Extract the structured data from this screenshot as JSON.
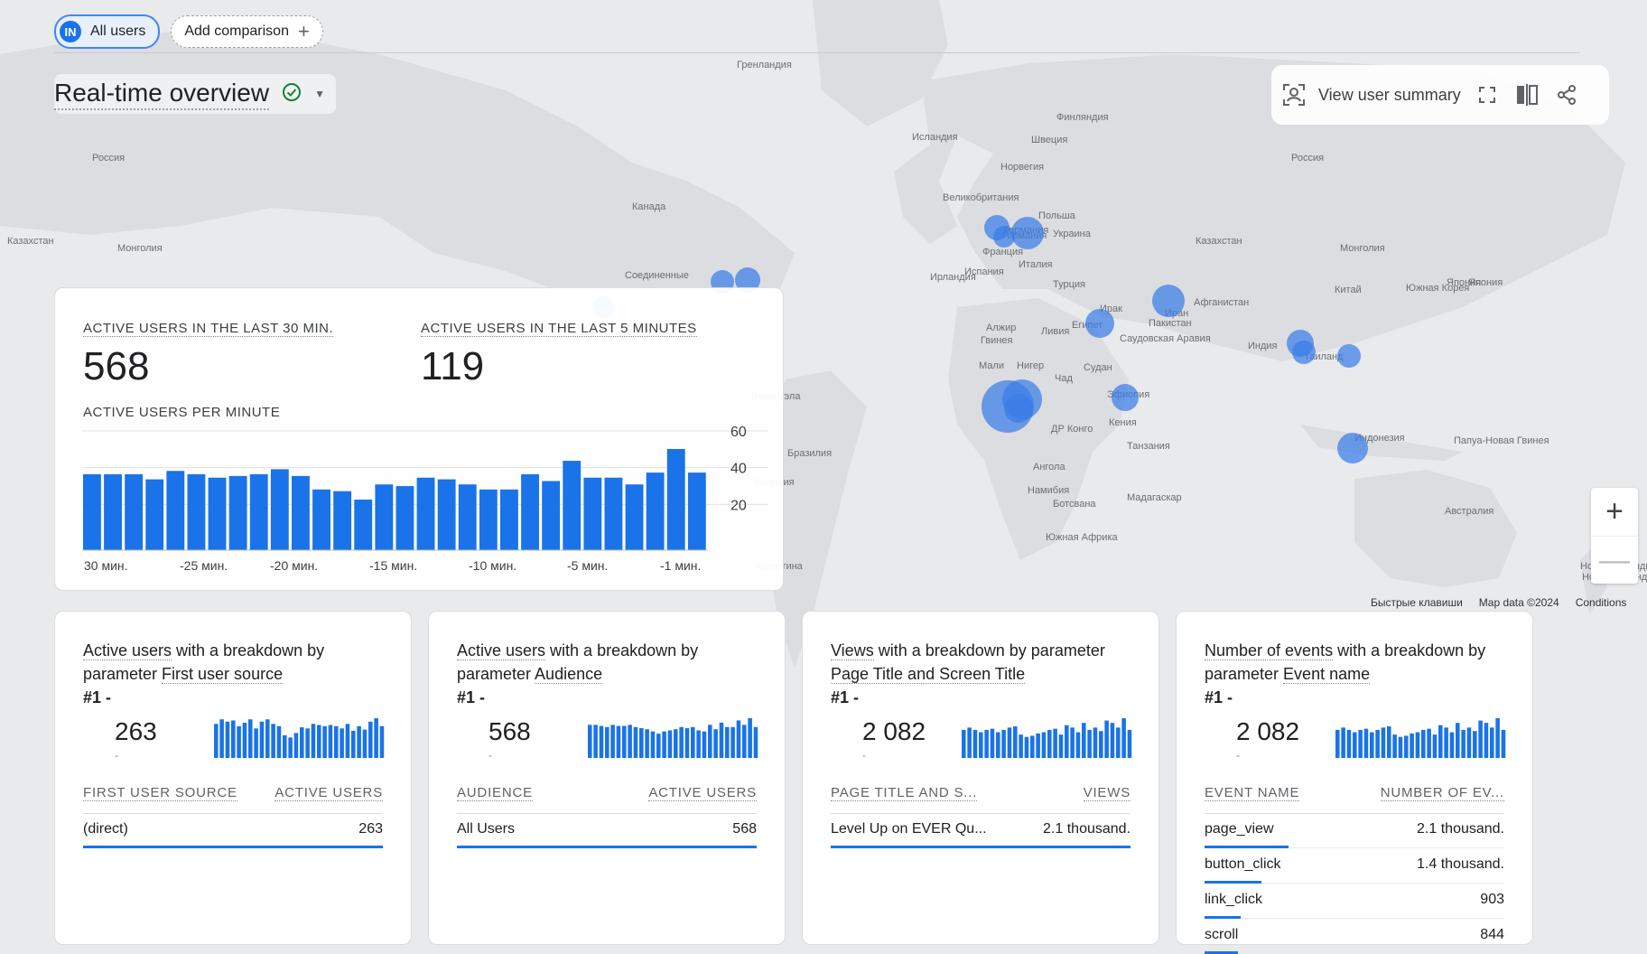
{
  "comparison": {
    "chip_initials": "IN",
    "chip_label": "All users",
    "add_label": "Add comparison"
  },
  "page_title": "Real-time overview",
  "toolbar": {
    "view_user_summary": "View user summary"
  },
  "map": {
    "labels": [
      "Гренландия",
      "Исландия",
      "Финляндия",
      "Швеция",
      "Норвегия",
      "Россия",
      "Россия",
      "Великобритания",
      "Польша",
      "Германия",
      "Франция",
      "Украина",
      "Италия",
      "Испания",
      "Казахстан",
      "Казахстан",
      "Монголия",
      "Монголия",
      "Канада",
      "Соединенные",
      "Япония",
      "Турция",
      "Ирак",
      "Иран",
      "Афганистан",
      "Китай",
      "Южная Корея",
      "Алжир",
      "Ливия",
      "Египет",
      "Саудовская Аравия",
      "Пакистан",
      "Индия",
      "Таиланд",
      "Мали",
      "Нигер",
      "Чад",
      "Судан",
      "Эфиопия",
      "Кения",
      "ДР Конго",
      "Танзания",
      "Бразилия",
      "Ангола",
      "Намибия",
      "Ботсвана",
      "Мадагаскар",
      "Южная Африка",
      "Индонезия",
      "Папуа-Новая Гвинея",
      "Австралия",
      "Новая Зеландия",
      "Ирландия",
      "Германия",
      "Гвинея",
      "Венесуэла",
      "Боливия",
      "Аргентина",
      "Новая Зеландия",
      "Япония"
    ],
    "zoom_in": "+",
    "zoom_out": "—",
    "attribution": {
      "shortcuts": "Быстрые клавиши",
      "map_data": "Map data ©2024",
      "conditions": "Conditions"
    }
  },
  "realtime": {
    "active30_label": "ACTIVE USERS IN THE LAST 30 MIN.",
    "active30_value": "568",
    "active5_label": "ACTIVE USERS IN THE LAST 5 MINUTES",
    "active5_value": "119",
    "per_minute_label": "ACTIVE USERS PER MINUTE"
  },
  "chart_data": {
    "type": "bar",
    "title": "ACTIVE USERS PER MINUTE",
    "categories": [
      "-30",
      "-29",
      "-28",
      "-27",
      "-26",
      "-25",
      "-24",
      "-23",
      "-22",
      "-21",
      "-20",
      "-19",
      "-18",
      "-17",
      "-16",
      "-15",
      "-14",
      "-13",
      "-12",
      "-11",
      "-10",
      "-9",
      "-8",
      "-7",
      "-6",
      "-5",
      "-4",
      "-3",
      "-2",
      "-1"
    ],
    "values": [
      45,
      45,
      45,
      42,
      47,
      45,
      43,
      44,
      45,
      48,
      44,
      36,
      35,
      30,
      39,
      38,
      43,
      42,
      39,
      36,
      36,
      45,
      41,
      53,
      43,
      43,
      39,
      46,
      60,
      46
    ],
    "x_tick_labels": [
      "30 мин.",
      "-25 мин.",
      "-20 мин.",
      "-15 мин.",
      "-10 мин.",
      "-5 мин.",
      "-1 мин."
    ],
    "y_ticks": [
      "20",
      "40",
      "60"
    ],
    "ylim": [
      0,
      60
    ],
    "grid": true,
    "color": "#1a73e8"
  },
  "cards": [
    {
      "title_parts": [
        "Active users",
        " with a breakdown by parameter ",
        "First user source"
      ],
      "rank": "#1  -",
      "value": "263",
      "dash": "-",
      "col1": "FIRST USER SOURCE",
      "col2": "ACTIVE USERS",
      "spark": [
        30,
        34,
        32,
        33,
        28,
        31,
        34,
        26,
        32,
        34,
        30,
        28,
        20,
        18,
        22,
        27,
        26,
        30,
        29,
        28,
        29,
        28,
        26,
        30,
        24,
        28,
        25,
        32,
        35,
        28
      ],
      "rows": [
        {
          "name": "(direct)",
          "value": "263",
          "fill": 1.0
        }
      ]
    },
    {
      "title_parts": [
        "Active users",
        " with a breakdown by parameter ",
        "Audience"
      ],
      "rank": "#1  -",
      "value": "568",
      "dash": "-",
      "col1": "AUDIENCE",
      "col2": "ACTIVE USERS",
      "spark": [
        30,
        30,
        29,
        28,
        30,
        29,
        29,
        30,
        28,
        27,
        26,
        24,
        22,
        24,
        25,
        26,
        28,
        27,
        28,
        25,
        24,
        30,
        26,
        32,
        28,
        28,
        34,
        30,
        36,
        28
      ],
      "rows": [
        {
          "name": "All Users",
          "value": "568",
          "fill": 1.0
        }
      ]
    },
    {
      "title_parts": [
        "Views",
        " with a breakdown by parameter ",
        "Page Title and Screen Title"
      ],
      "rank": "#1  -",
      "value": "2 082",
      "dash": "-",
      "col1": "PAGE TITLE AND S...",
      "col2": "VIEWS",
      "spark": [
        24,
        26,
        24,
        22,
        24,
        25,
        22,
        24,
        26,
        27,
        20,
        18,
        19,
        21,
        22,
        24,
        25,
        20,
        28,
        26,
        22,
        30,
        24,
        26,
        23,
        32,
        30,
        26,
        34,
        24
      ],
      "rows": [
        {
          "name": "Level Up on EVER Qu...",
          "value": "2.1 thousand.",
          "fill": 1.0
        }
      ]
    },
    {
      "title_parts": [
        "Number of events",
        " with a breakdown by parameter ",
        "Event name"
      ],
      "rank": "#1  -",
      "value": "2 082",
      "dash": "-",
      "col1": "EVENT NAME",
      "col2": "NUMBER OF EV...",
      "spark": [
        24,
        26,
        24,
        22,
        24,
        25,
        22,
        24,
        26,
        27,
        20,
        18,
        19,
        21,
        22,
        24,
        25,
        20,
        28,
        26,
        22,
        30,
        24,
        26,
        23,
        32,
        30,
        26,
        34,
        24
      ],
      "rows": [
        {
          "name": "page_view",
          "value": "2.1 thousand.",
          "fill": 0.28
        },
        {
          "name": "button_click",
          "value": "1.4 thousand.",
          "fill": 0.19
        },
        {
          "name": "link_click",
          "value": "903",
          "fill": 0.12
        },
        {
          "name": "scroll",
          "value": "844",
          "fill": 0.11
        }
      ]
    }
  ]
}
